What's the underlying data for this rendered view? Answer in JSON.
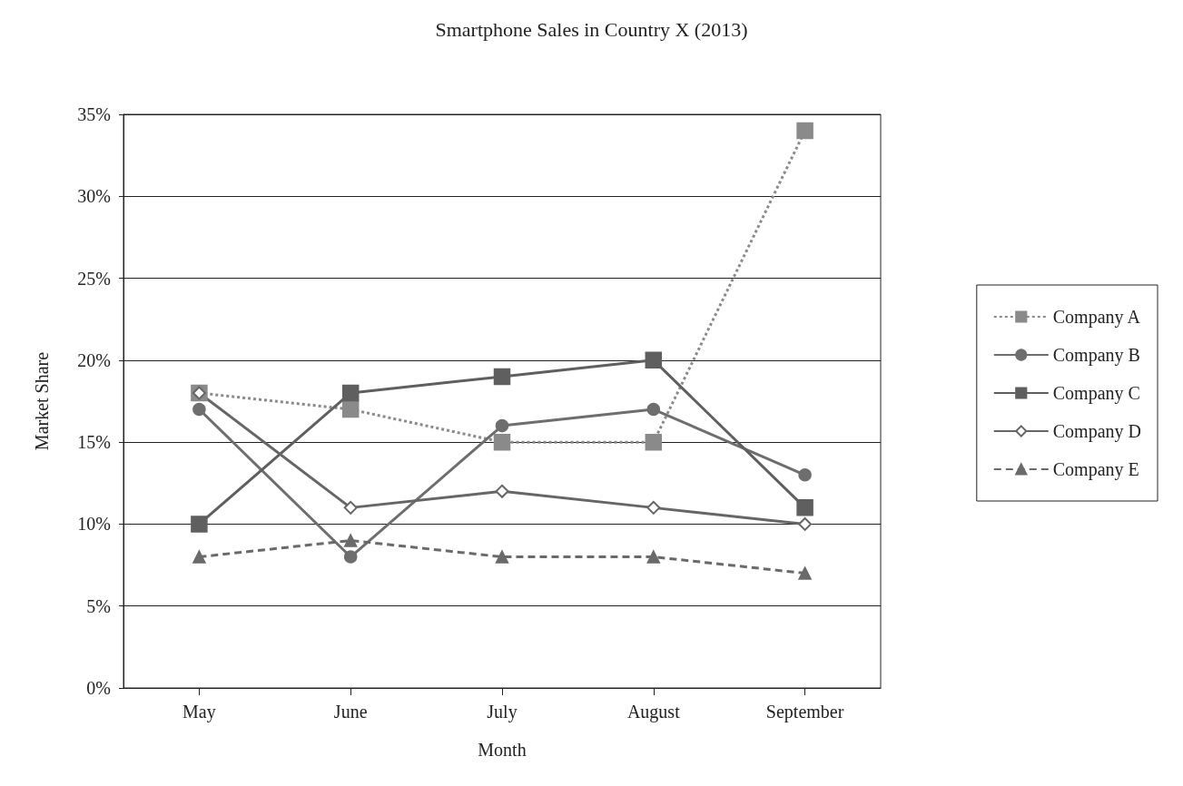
{
  "chart_data": {
    "type": "line",
    "title": "Smartphone Sales in Country X (2013)",
    "xlabel": "Month",
    "ylabel": "Market Share",
    "categories": [
      "May",
      "June",
      "July",
      "August",
      "September"
    ],
    "series": [
      {
        "name": "Company A",
        "color": "#8a8a8a",
        "marker": "square",
        "line_style": "dotted",
        "values": [
          18,
          17,
          15,
          15,
          34
        ]
      },
      {
        "name": "Company B",
        "color": "#6e6e6e",
        "marker": "circle",
        "line_style": "solid",
        "values": [
          17,
          8,
          16,
          17,
          13
        ]
      },
      {
        "name": "Company C",
        "color": "#5f5f5f",
        "marker": "square",
        "line_style": "solid",
        "values": [
          10,
          18,
          19,
          20,
          11
        ]
      },
      {
        "name": "Company D",
        "color": "#666666",
        "marker": "diamond",
        "line_style": "solid",
        "values": [
          18,
          11,
          12,
          11,
          10
        ]
      },
      {
        "name": "Company E",
        "color": "#6a6a6a",
        "marker": "triangle",
        "line_style": "dashed",
        "values": [
          8,
          9,
          8,
          8,
          7
        ]
      }
    ],
    "ylim": [
      0,
      35
    ],
    "yticks": [
      {
        "value": 0,
        "label": "0%"
      },
      {
        "value": 5,
        "label": "5%"
      },
      {
        "value": 10,
        "label": "10%"
      },
      {
        "value": 15,
        "label": "15%"
      },
      {
        "value": 20,
        "label": "20%"
      },
      {
        "value": 25,
        "label": "25%"
      },
      {
        "value": 30,
        "label": "30%"
      },
      {
        "value": 35,
        "label": "35%"
      }
    ],
    "grid": "y",
    "legend": "right"
  }
}
